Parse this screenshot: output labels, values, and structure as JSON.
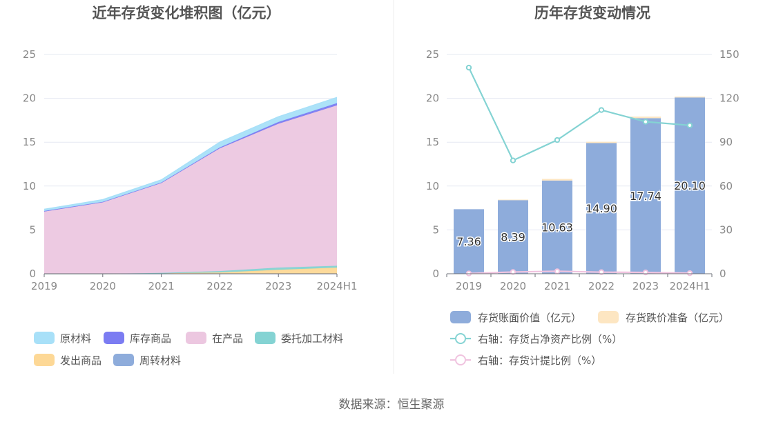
{
  "source_text": "数据来源：恒生聚源",
  "chart_data": [
    {
      "type": "area",
      "title": "近年存货变化堆积图（亿元）",
      "categories": [
        "2019",
        "2020",
        "2021",
        "2022",
        "2023",
        "2024H1"
      ],
      "ylim": [
        0,
        25
      ],
      "yticks": [
        0,
        5,
        10,
        15,
        20,
        25
      ],
      "series": [
        {
          "name": "周转材料",
          "color": "#8eacdb",
          "values": [
            0.0,
            0.0,
            0.0,
            0.0,
            0.0,
            0.0
          ]
        },
        {
          "name": "发出商品",
          "color": "#fdd896",
          "values": [
            0.0,
            0.0,
            0.05,
            0.15,
            0.45,
            0.7
          ]
        },
        {
          "name": "委托加工材料",
          "color": "#84d3d3",
          "values": [
            0.0,
            0.0,
            0.05,
            0.15,
            0.25,
            0.2
          ]
        },
        {
          "name": "在产品",
          "color": "#ecc7e0",
          "values": [
            7.1,
            8.15,
            10.25,
            14.0,
            16.4,
            18.3
          ]
        },
        {
          "name": "库存商品",
          "color": "#7b7cf2",
          "values": [
            0.05,
            0.05,
            0.05,
            0.1,
            0.2,
            0.25
          ]
        },
        {
          "name": "原材料",
          "color": "#a8e0f8",
          "values": [
            0.2,
            0.25,
            0.3,
            0.6,
            0.6,
            0.65
          ]
        }
      ],
      "legend": [
        {
          "name": "原材料",
          "color": "#a8e0f8"
        },
        {
          "name": "库存商品",
          "color": "#7b7cf2"
        },
        {
          "name": "在产品",
          "color": "#ecc7e0"
        },
        {
          "name": "委托加工材料",
          "color": "#84d3d3"
        },
        {
          "name": "发出商品",
          "color": "#fdd896"
        },
        {
          "name": "周转材料",
          "color": "#8eacdb"
        }
      ]
    },
    {
      "type": "bar",
      "title": "历年存货变动情况",
      "categories": [
        "2019",
        "2020",
        "2021",
        "2022",
        "2023",
        "2024H1"
      ],
      "ylim_left": [
        0,
        25
      ],
      "yticks_left": [
        0,
        5,
        10,
        15,
        20,
        25
      ],
      "ylim_right": [
        0,
        150
      ],
      "yticks_right": [
        0,
        30,
        60,
        90,
        120,
        150
      ],
      "bars": {
        "name": "存货账面价值（亿元）",
        "color": "#8eacdb",
        "values": [
          7.36,
          8.39,
          10.63,
          14.9,
          17.74,
          20.1
        ],
        "labels": [
          "7.36",
          "8.39",
          "10.63",
          "14.90",
          "17.74",
          "20.10"
        ]
      },
      "bars_top": {
        "name": "存货跌价准备（亿元）",
        "color": "#fde6c2",
        "values": [
          0.0,
          0.06,
          0.18,
          0.15,
          0.18,
          0.1
        ]
      },
      "lines": [
        {
          "name": "右轴：存货占净资产比例（%）",
          "color": "#84d3d3",
          "values": [
            141.0,
            77.5,
            91.5,
            112.0,
            104.0,
            101.5
          ]
        },
        {
          "name": "右轴：存货计提比例（%）",
          "color": "#f0c3df",
          "values": [
            0.2,
            1.2,
            1.7,
            1.1,
            0.9,
            0.4
          ]
        }
      ]
    }
  ]
}
